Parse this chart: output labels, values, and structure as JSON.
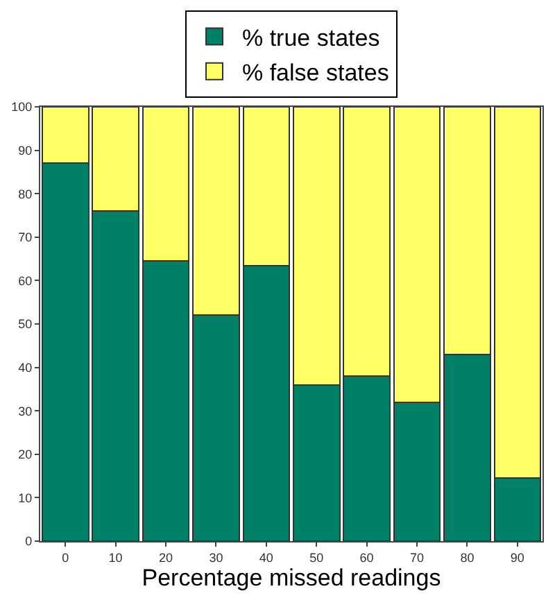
{
  "chart_data": {
    "type": "bar",
    "stacked": true,
    "xlabel": "Percentage missed readings",
    "categories": [
      "0",
      "10",
      "20",
      "30",
      "40",
      "50",
      "60",
      "70",
      "80",
      "90"
    ],
    "series": [
      {
        "name": "% true states",
        "color": "#008066",
        "values": [
          87,
          76,
          64.5,
          52,
          63.5,
          36,
          38,
          32,
          43,
          14.5
        ]
      },
      {
        "name": "% false states",
        "color": "#ffff66",
        "values": [
          13,
          24,
          35.5,
          48,
          36.5,
          64,
          62,
          68,
          57,
          85.5
        ]
      }
    ],
    "ylim": [
      0,
      100
    ],
    "yticks": [
      0,
      10,
      20,
      30,
      40,
      50,
      60,
      70,
      80,
      90,
      100
    ],
    "legend": "top"
  }
}
